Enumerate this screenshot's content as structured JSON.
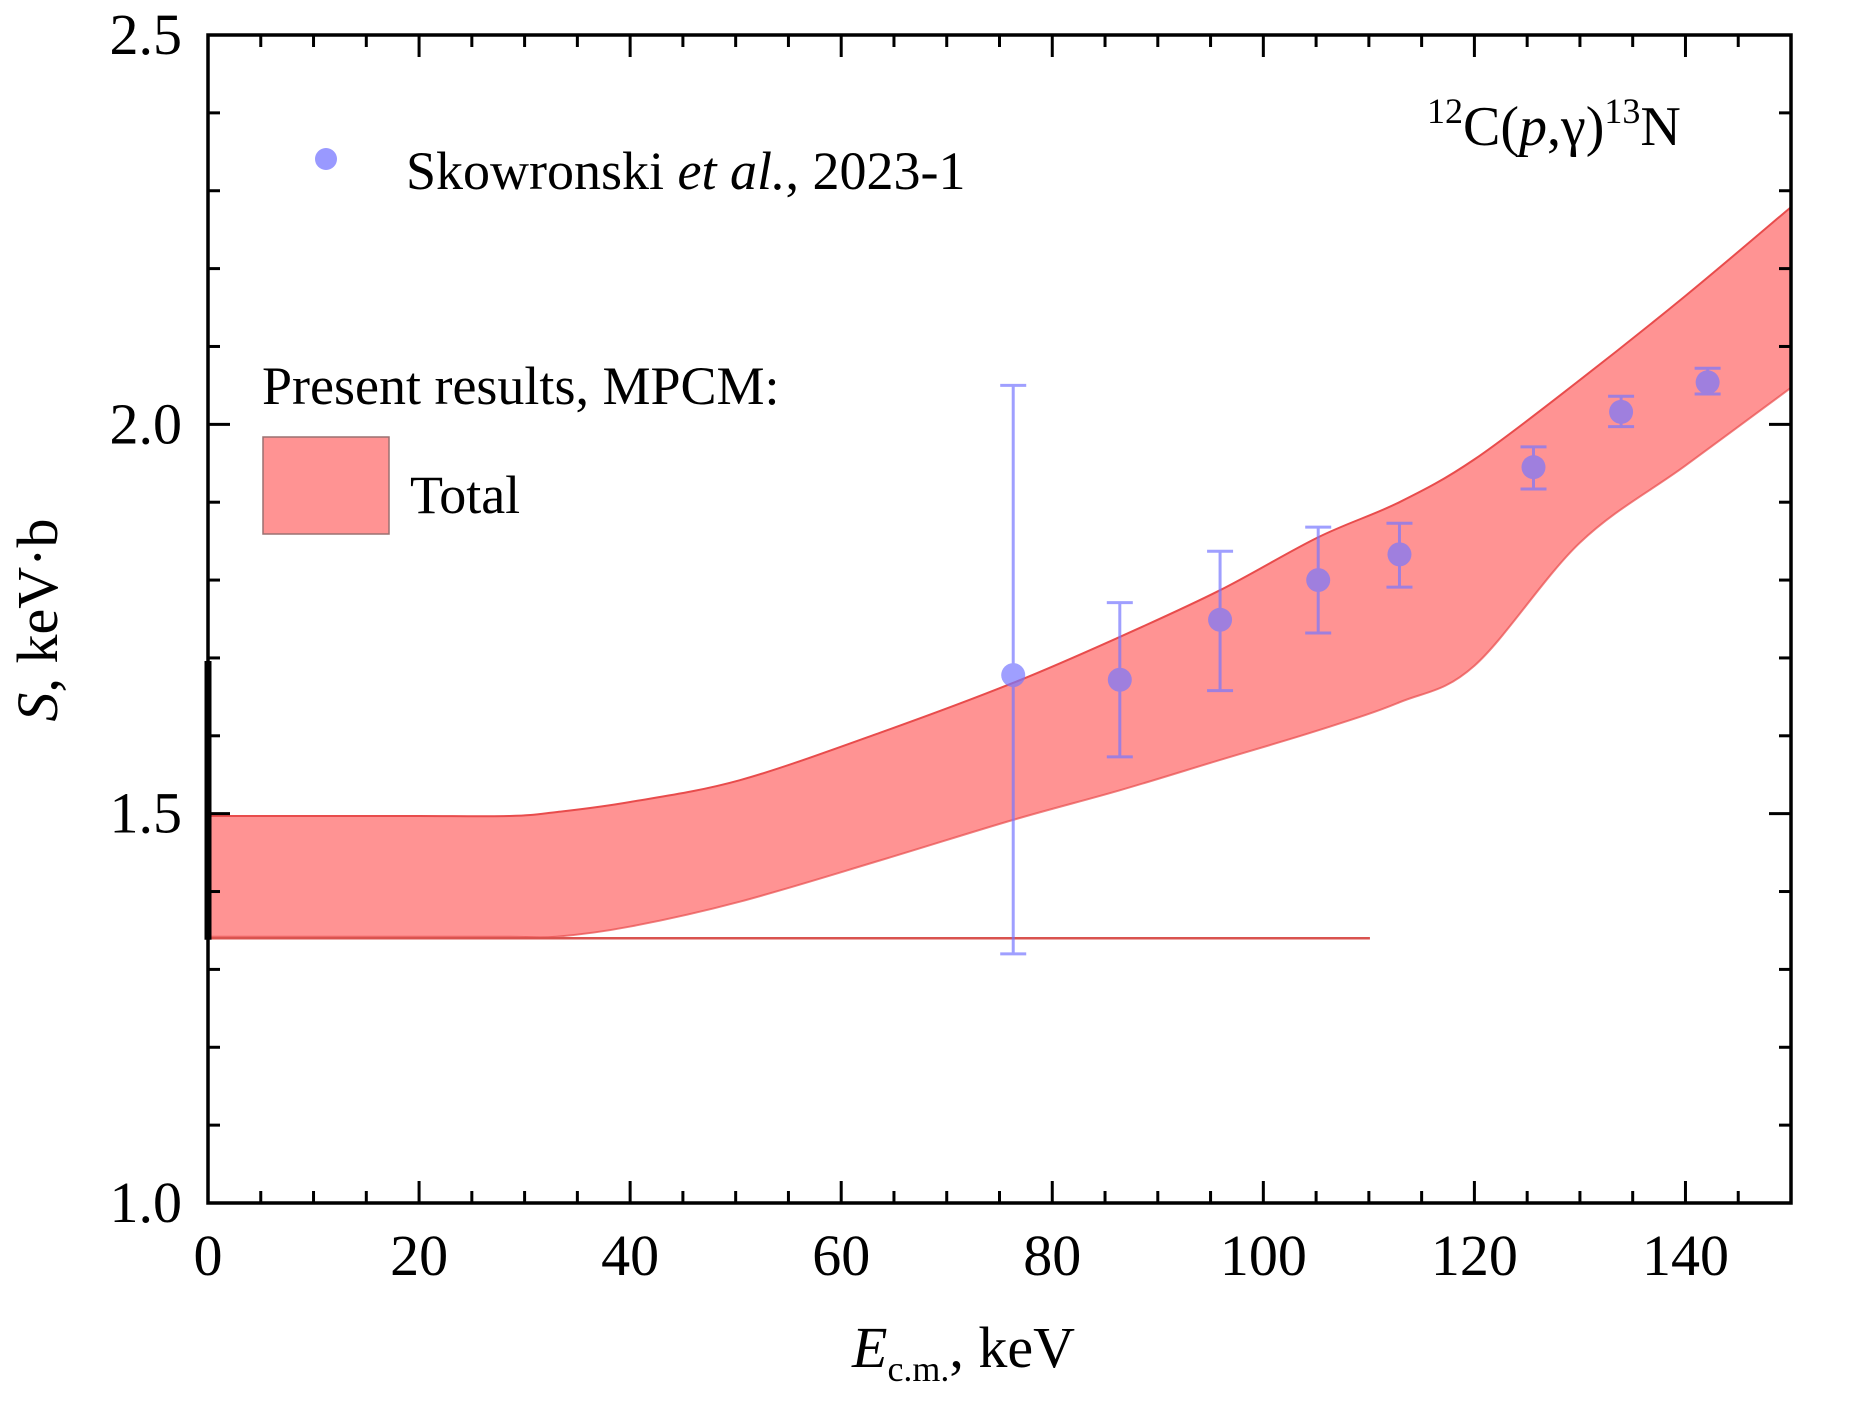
{
  "chart_data": {
    "type": "scatter",
    "title": "",
    "annotation": {
      "target": "12",
      "target_element": "C",
      "reaction": "(p,γ)",
      "reaction_parts": [
        "(",
        "p",
        ",γ)"
      ],
      "product_mass": "13",
      "product_element": "N"
    },
    "xlabel": {
      "symbol": "E",
      "subscript": "c.m.",
      "unit": ", keV"
    },
    "ylabel": {
      "symbol": "S",
      "unit": ", keV·b"
    },
    "xlim": [
      0,
      150
    ],
    "ylim": [
      1.0,
      2.5
    ],
    "xticks": {
      "major": [
        0,
        20,
        40,
        60,
        80,
        100,
        120,
        140
      ],
      "minor_step": 5
    },
    "yticks": {
      "major": [
        1.0,
        1.5,
        2.0,
        2.5
      ],
      "minor_step": 0.1
    },
    "xtick_labels": [
      "0",
      "20",
      "40",
      "60",
      "80",
      "100",
      "120",
      "140"
    ],
    "ytick_labels": [
      "1.0",
      "1.5",
      "2.0",
      "2.5"
    ],
    "grid": false,
    "legend": {
      "placement": "top-left",
      "entries": [
        {
          "label_parts": [
            "Skowronski ",
            "et al.",
            ", 2023-1"
          ],
          "marker": "circle",
          "color": "#9999ff"
        },
        {
          "heading": "Present results, MPCM:"
        },
        {
          "label": "Total",
          "marker": "rect",
          "color": "#ff9393"
        }
      ]
    },
    "series": [
      {
        "name": "Skowronski et al., 2023-1",
        "kind": "points_with_errorbars",
        "color": "#7777ff",
        "opacity": 0.7,
        "points": [
          {
            "x": 76.3,
            "y": 1.678,
            "ylow": 1.32,
            "yhigh": 2.05
          },
          {
            "x": 86.4,
            "y": 1.672,
            "ylow": 1.573,
            "yhigh": 1.771
          },
          {
            "x": 95.9,
            "y": 1.749,
            "ylow": 1.658,
            "yhigh": 1.837
          },
          {
            "x": 105.2,
            "y": 1.8,
            "ylow": 1.732,
            "yhigh": 1.868
          },
          {
            "x": 112.9,
            "y": 1.833,
            "ylow": 1.791,
            "yhigh": 1.873
          },
          {
            "x": 125.6,
            "y": 1.945,
            "ylow": 1.917,
            "yhigh": 1.971
          },
          {
            "x": 133.9,
            "y": 2.016,
            "ylow": 1.997,
            "yhigh": 2.036
          },
          {
            "x": 142.1,
            "y": 2.054,
            "ylow": 2.039,
            "yhigh": 2.072
          }
        ]
      },
      {
        "name": "Total",
        "kind": "band",
        "color": "#ff9393",
        "edge_color": "#e84c4c",
        "x": [
          0,
          10,
          20,
          28.6,
          33,
          40,
          50.4,
          63.7,
          76.3,
          86.4,
          95.9,
          105.2,
          112.9,
          120,
          130,
          140,
          150
        ],
        "upper": [
          1.497,
          1.497,
          1.497,
          1.497,
          1.502,
          1.515,
          1.543,
          1.604,
          1.668,
          1.727,
          1.787,
          1.855,
          1.9,
          1.955,
          2.057,
          2.165,
          2.279
        ],
        "lower": [
          1.342,
          1.342,
          1.342,
          1.342,
          1.342,
          1.355,
          1.387,
          1.44,
          1.492,
          1.53,
          1.569,
          1.607,
          1.643,
          1.69,
          1.848,
          1.947,
          2.047
        ]
      },
      {
        "name": "reference line",
        "kind": "hline",
        "color": "#d9534f",
        "y": 1.34,
        "x_range": [
          0,
          110.1
        ]
      }
    ],
    "left_axis_highlight": {
      "y_range": [
        1.338,
        1.696
      ]
    }
  }
}
